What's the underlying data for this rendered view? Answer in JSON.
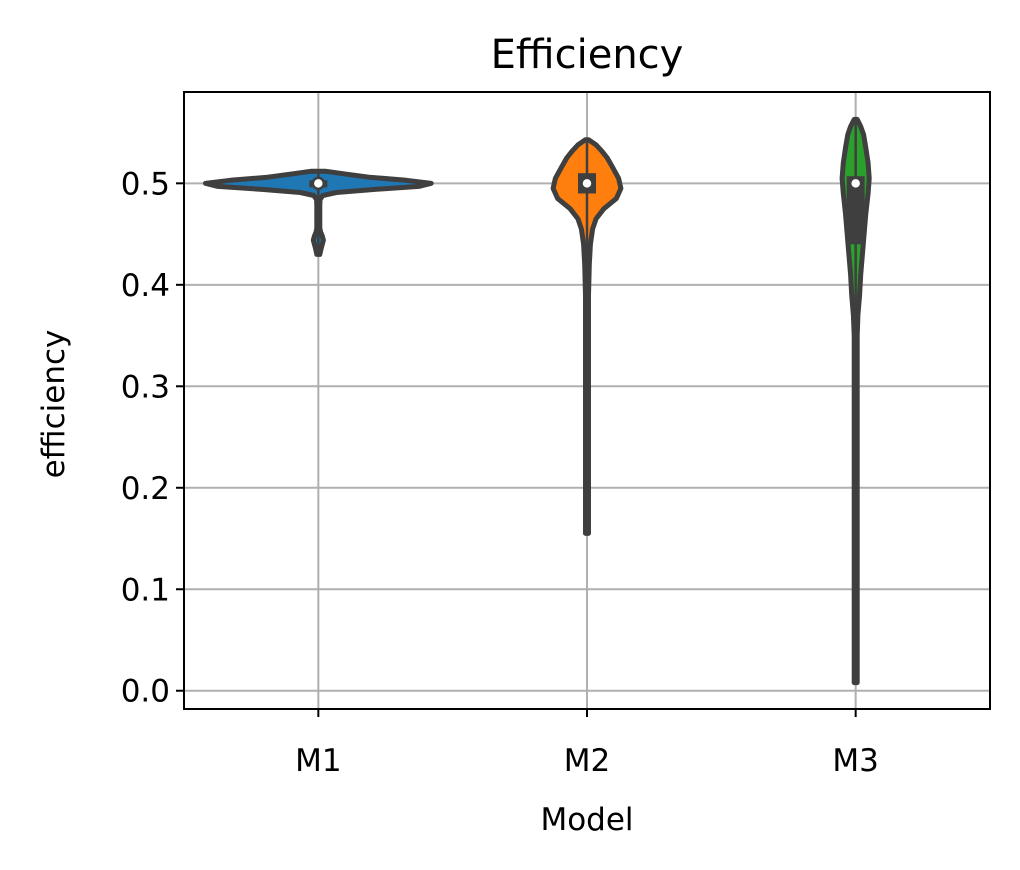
{
  "chart_data": {
    "type": "violin",
    "title": "Efficiency",
    "xlabel": "Model",
    "ylabel": "efficiency",
    "categories": [
      "M1",
      "M2",
      "M3"
    ],
    "ylim": [
      -0.018,
      0.59
    ],
    "yticks": [
      0.0,
      0.1,
      0.2,
      0.3,
      0.4,
      0.5
    ],
    "ytick_labels": [
      "0.0",
      "0.1",
      "0.2",
      "0.3",
      "0.4",
      "0.5"
    ],
    "grid": true,
    "series": [
      {
        "category": "M1",
        "color": "#1f77b4",
        "min": 0.43,
        "max": 0.512,
        "median": 0.5,
        "q1": 0.496,
        "q3": 0.503,
        "density": [
          [
            0.43,
            0.004
          ],
          [
            0.436,
            0.025
          ],
          [
            0.44,
            0.035
          ],
          [
            0.444,
            0.045
          ],
          [
            0.448,
            0.035
          ],
          [
            0.452,
            0.02
          ],
          [
            0.456,
            0.012
          ],
          [
            0.46,
            0.008
          ],
          [
            0.466,
            0.007
          ],
          [
            0.472,
            0.008
          ],
          [
            0.478,
            0.01
          ],
          [
            0.484,
            0.015
          ],
          [
            0.488,
            0.04
          ],
          [
            0.491,
            0.16
          ],
          [
            0.494,
            0.5
          ],
          [
            0.497,
            0.89
          ],
          [
            0.5,
            1.0
          ],
          [
            0.503,
            0.78
          ],
          [
            0.506,
            0.45
          ],
          [
            0.509,
            0.25
          ],
          [
            0.512,
            0.06
          ]
        ]
      },
      {
        "category": "M2",
        "color": "#ff7f0e",
        "min": 0.155,
        "max": 0.543,
        "median": 0.5,
        "q1": 0.49,
        "q3": 0.51,
        "density": [
          [
            0.155,
            0.004
          ],
          [
            0.18,
            0.006
          ],
          [
            0.21,
            0.008
          ],
          [
            0.24,
            0.009
          ],
          [
            0.27,
            0.012
          ],
          [
            0.3,
            0.01
          ],
          [
            0.33,
            0.009
          ],
          [
            0.36,
            0.01
          ],
          [
            0.39,
            0.013
          ],
          [
            0.42,
            0.02
          ],
          [
            0.44,
            0.03
          ],
          [
            0.455,
            0.05
          ],
          [
            0.465,
            0.08
          ],
          [
            0.475,
            0.15
          ],
          [
            0.485,
            0.26
          ],
          [
            0.495,
            0.3
          ],
          [
            0.505,
            0.28
          ],
          [
            0.515,
            0.23
          ],
          [
            0.525,
            0.18
          ],
          [
            0.532,
            0.13
          ],
          [
            0.538,
            0.08
          ],
          [
            0.543,
            0.01
          ]
        ]
      },
      {
        "category": "M3",
        "color": "#2ca02c",
        "min": 0.008,
        "max": 0.563,
        "median": 0.5,
        "q1": 0.44,
        "q3": 0.507,
        "density": [
          [
            0.008,
            0.004
          ],
          [
            0.05,
            0.005
          ],
          [
            0.1,
            0.006
          ],
          [
            0.15,
            0.006
          ],
          [
            0.2,
            0.007
          ],
          [
            0.25,
            0.008
          ],
          [
            0.3,
            0.009
          ],
          [
            0.35,
            0.012
          ],
          [
            0.37,
            0.02
          ],
          [
            0.39,
            0.035
          ],
          [
            0.41,
            0.045
          ],
          [
            0.43,
            0.06
          ],
          [
            0.45,
            0.075
          ],
          [
            0.47,
            0.09
          ],
          [
            0.49,
            0.11
          ],
          [
            0.505,
            0.12
          ],
          [
            0.52,
            0.11
          ],
          [
            0.535,
            0.09
          ],
          [
            0.548,
            0.07
          ],
          [
            0.556,
            0.045
          ],
          [
            0.563,
            0.01
          ]
        ]
      }
    ]
  }
}
